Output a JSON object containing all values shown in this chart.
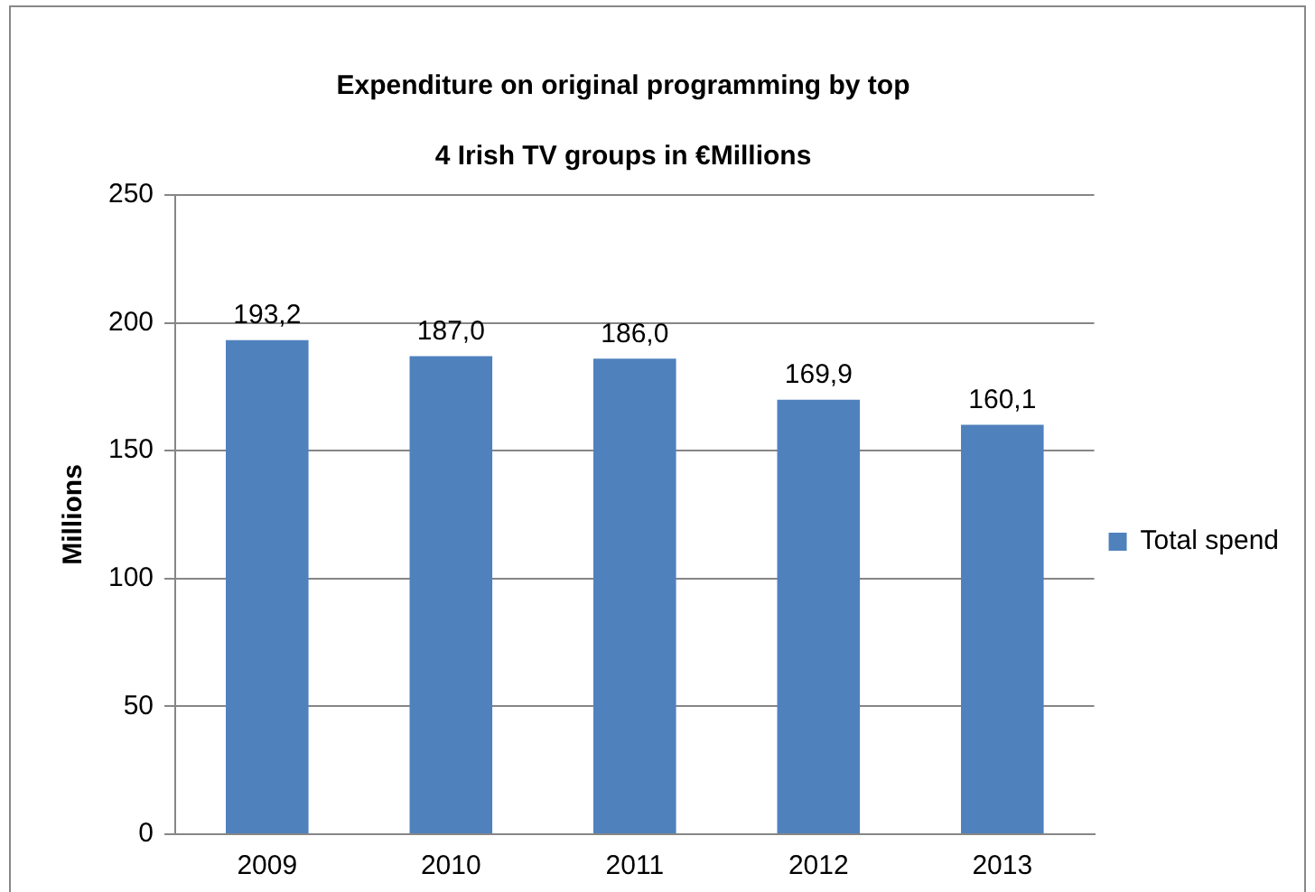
{
  "chart_data": {
    "type": "bar",
    "title": "Expenditure on original programming by  top 4 Irish TV groups in €Millions",
    "ylabel": "Millions",
    "categories": [
      "2009",
      "2010",
      "2011",
      "2012",
      "2013"
    ],
    "series": [
      {
        "name": "Total spend",
        "color": "#4f81bd",
        "values": [
          193.2,
          187.0,
          186.0,
          169.9,
          160.1
        ],
        "value_labels": [
          "193,2",
          "187,0",
          "186,0",
          "169,9",
          "160,1"
        ]
      }
    ],
    "ylim": [
      0,
      250
    ],
    "yticks": [
      0,
      50,
      100,
      150,
      200,
      250
    ],
    "grid": "y",
    "legend": "right"
  }
}
